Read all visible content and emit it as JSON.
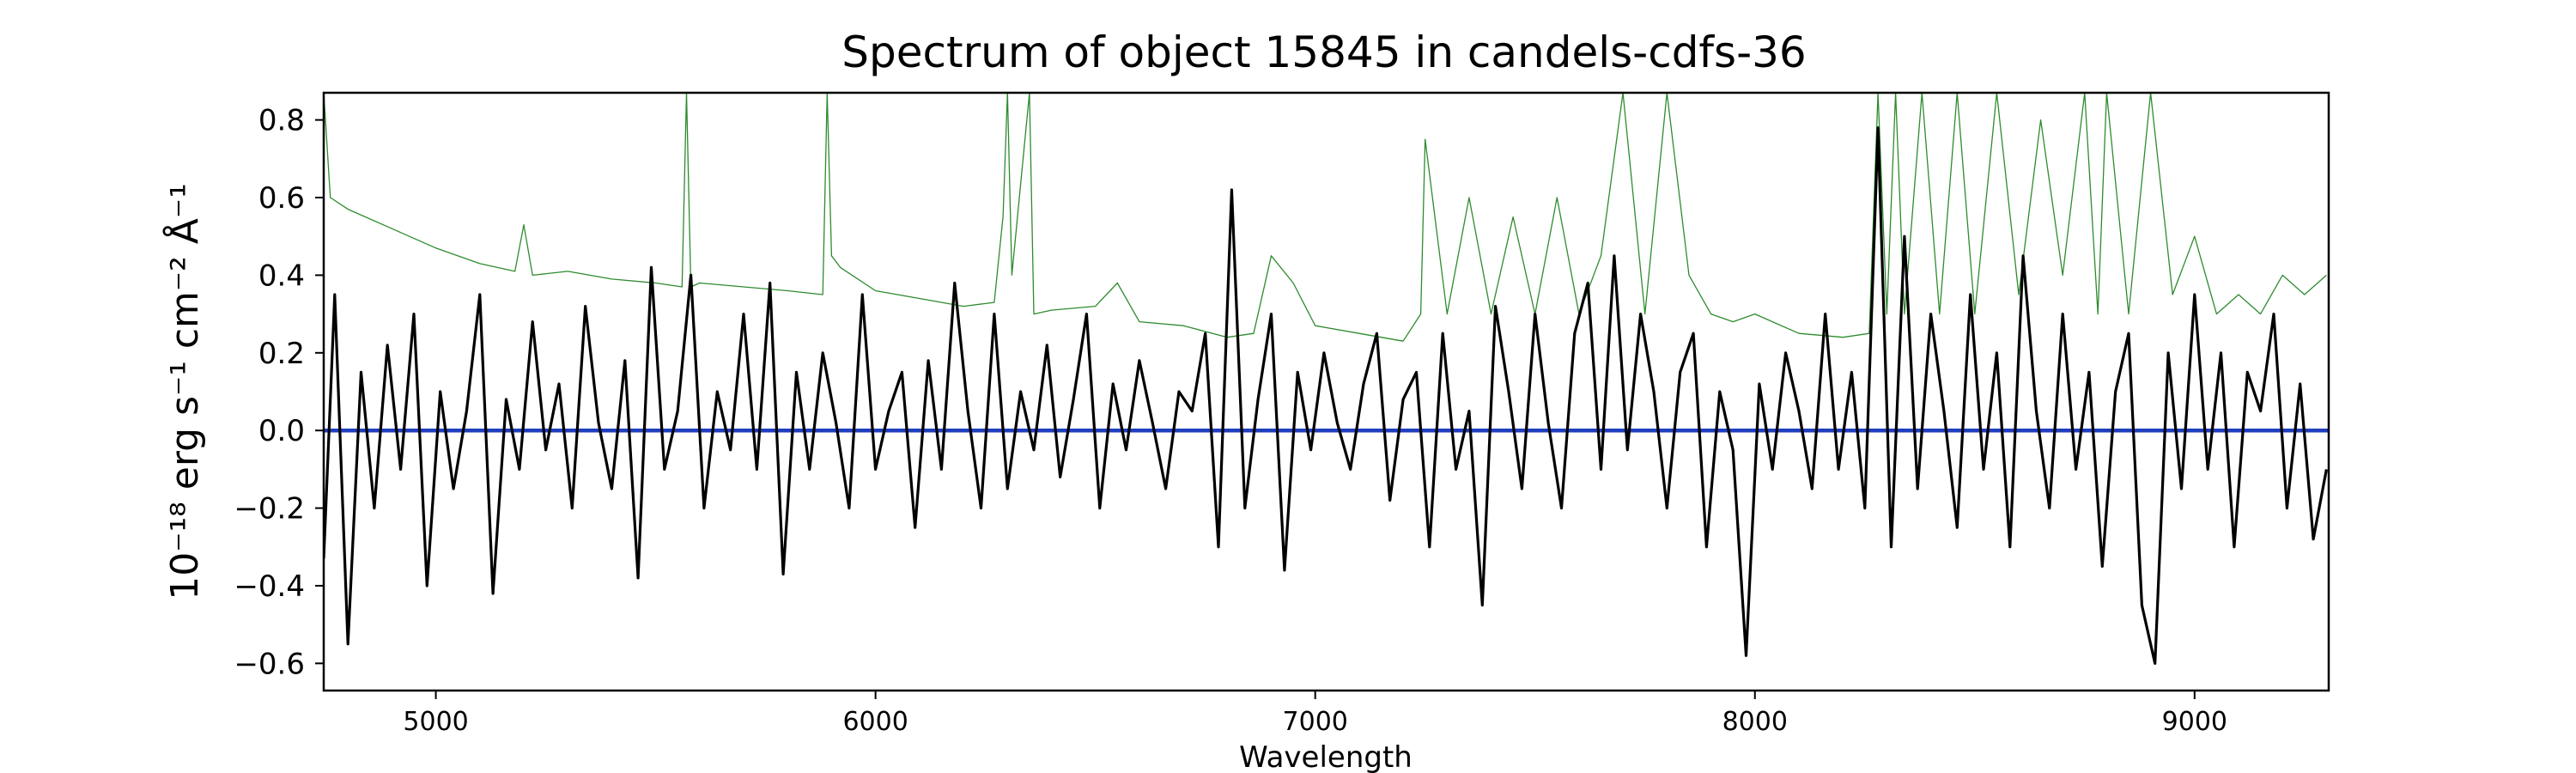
{
  "chart_data": {
    "type": "line",
    "title": "Spectrum of object 15845 in candels-cdfs-36",
    "xlabel": "Wavelength",
    "ylabel": "10⁻¹⁸ erg s⁻¹ cm⁻² Å⁻¹",
    "xlim": [
      4745,
      9305
    ],
    "ylim": [
      -0.67,
      0.87
    ],
    "xticks": [
      5000,
      6000,
      7000,
      8000,
      9000
    ],
    "yticks": [
      -0.6,
      -0.4,
      -0.2,
      0.0,
      0.2,
      0.4,
      0.6,
      0.8
    ],
    "ytick_labels": [
      "−0.6",
      "−0.4",
      "−0.2",
      "0.0",
      "0.2",
      "0.4",
      "0.6",
      "0.8"
    ],
    "grid": false,
    "series": [
      {
        "color": "#000000",
        "x": [
          4745,
          4770,
          4800,
          4830,
          4860,
          4890,
          4920,
          4950,
          4980,
          5010,
          5040,
          5070,
          5100,
          5130,
          5160,
          5190,
          5220,
          5250,
          5280,
          5310,
          5340,
          5370,
          5400,
          5430,
          5460,
          5490,
          5520,
          5550,
          5580,
          5610,
          5640,
          5670,
          5700,
          5730,
          5760,
          5790,
          5820,
          5850,
          5880,
          5910,
          5940,
          5970,
          6000,
          6030,
          6060,
          6090,
          6120,
          6150,
          6180,
          6210,
          6240,
          6270,
          6300,
          6330,
          6360,
          6390,
          6420,
          6450,
          6480,
          6510,
          6540,
          6570,
          6600,
          6630,
          6660,
          6690,
          6720,
          6750,
          6780,
          6810,
          6840,
          6870,
          6900,
          6930,
          6960,
          6990,
          7020,
          7050,
          7080,
          7110,
          7140,
          7170,
          7200,
          7230,
          7260,
          7290,
          7320,
          7350,
          7380,
          7410,
          7440,
          7470,
          7500,
          7530,
          7560,
          7590,
          7620,
          7650,
          7680,
          7710,
          7740,
          7770,
          7800,
          7830,
          7860,
          7890,
          7920,
          7950,
          7980,
          8010,
          8040,
          8070,
          8100,
          8130,
          8160,
          8190,
          8220,
          8250,
          8280,
          8310,
          8340,
          8370,
          8400,
          8430,
          8460,
          8490,
          8520,
          8550,
          8580,
          8610,
          8640,
          8670,
          8700,
          8730,
          8760,
          8790,
          8820,
          8850,
          8880,
          8910,
          8940,
          8970,
          9000,
          9030,
          9060,
          9090,
          9120,
          9150,
          9180,
          9210,
          9240,
          9270,
          9300
        ],
        "values": [
          -0.33,
          0.35,
          -0.55,
          0.15,
          -0.2,
          0.22,
          -0.1,
          0.3,
          -0.4,
          0.1,
          -0.15,
          0.05,
          0.35,
          -0.42,
          0.08,
          -0.1,
          0.28,
          -0.05,
          0.12,
          -0.2,
          0.32,
          0.02,
          -0.15,
          0.18,
          -0.38,
          0.42,
          -0.1,
          0.05,
          0.4,
          -0.2,
          0.1,
          -0.05,
          0.3,
          -0.1,
          0.38,
          -0.37,
          0.15,
          -0.1,
          0.2,
          0.02,
          -0.2,
          0.35,
          -0.1,
          0.05,
          0.15,
          -0.25,
          0.18,
          -0.1,
          0.38,
          0.05,
          -0.2,
          0.3,
          -0.15,
          0.1,
          -0.05,
          0.22,
          -0.12,
          0.08,
          0.3,
          -0.2,
          0.12,
          -0.05,
          0.18,
          0.02,
          -0.15,
          0.1,
          0.05,
          0.25,
          -0.3,
          0.62,
          -0.2,
          0.08,
          0.3,
          -0.36,
          0.15,
          -0.05,
          0.2,
          0.02,
          -0.1,
          0.12,
          0.25,
          -0.18,
          0.08,
          0.15,
          -0.3,
          0.25,
          -0.1,
          0.05,
          -0.45,
          0.32,
          0.1,
          -0.15,
          0.3,
          0.02,
          -0.2,
          0.25,
          0.38,
          -0.1,
          0.45,
          -0.05,
          0.3,
          0.1,
          -0.2,
          0.15,
          0.25,
          -0.3,
          0.1,
          -0.05,
          -0.58,
          0.12,
          -0.1,
          0.2,
          0.05,
          -0.15,
          0.3,
          -0.1,
          0.15,
          -0.2,
          0.78,
          -0.3,
          0.5,
          -0.15,
          0.3,
          0.05,
          -0.25,
          0.35,
          -0.1,
          0.2,
          -0.3,
          0.45,
          0.05,
          -0.2,
          0.3,
          -0.1,
          0.15,
          -0.35,
          0.1,
          0.25,
          -0.45,
          -0.6,
          0.2,
          -0.15,
          0.35,
          -0.1,
          0.2,
          -0.3,
          0.15,
          0.05,
          0.3,
          -0.2,
          0.12,
          -0.28,
          -0.1
        ]
      },
      {
        "color": "#2e8b2e",
        "x": [
          4745,
          4760,
          4800,
          4900,
          5000,
          5100,
          5180,
          5200,
          5220,
          5300,
          5400,
          5500,
          5560,
          5570,
          5580,
          5600,
          5700,
          5800,
          5880,
          5890,
          5900,
          5920,
          6000,
          6100,
          6200,
          6270,
          6290,
          6300,
          6310,
          6350,
          6360,
          6400,
          6500,
          6550,
          6600,
          6700,
          6800,
          6860,
          6900,
          6950,
          7000,
          7100,
          7200,
          7240,
          7250,
          7300,
          7350,
          7400,
          7450,
          7500,
          7550,
          7600,
          7650,
          7700,
          7750,
          7800,
          7850,
          7900,
          7950,
          8000,
          8100,
          8200,
          8260,
          8280,
          8300,
          8320,
          8340,
          8380,
          8420,
          8460,
          8500,
          8550,
          8600,
          8650,
          8700,
          8750,
          8780,
          8800,
          8850,
          8900,
          8950,
          9000,
          9050,
          9100,
          9150,
          9200,
          9250,
          9300
        ],
        "values": [
          0.87,
          0.6,
          0.57,
          0.52,
          0.47,
          0.43,
          0.41,
          0.53,
          0.4,
          0.41,
          0.39,
          0.38,
          0.37,
          0.87,
          0.37,
          0.38,
          0.37,
          0.36,
          0.35,
          0.87,
          0.45,
          0.42,
          0.36,
          0.34,
          0.32,
          0.33,
          0.55,
          0.87,
          0.4,
          0.87,
          0.3,
          0.31,
          0.32,
          0.38,
          0.28,
          0.27,
          0.24,
          0.25,
          0.45,
          0.38,
          0.27,
          0.25,
          0.23,
          0.3,
          0.75,
          0.3,
          0.6,
          0.3,
          0.55,
          0.3,
          0.6,
          0.3,
          0.45,
          0.87,
          0.3,
          0.87,
          0.4,
          0.3,
          0.28,
          0.3,
          0.25,
          0.24,
          0.25,
          0.87,
          0.3,
          0.87,
          0.3,
          0.87,
          0.3,
          0.87,
          0.3,
          0.87,
          0.35,
          0.8,
          0.4,
          0.87,
          0.3,
          0.87,
          0.3,
          0.87,
          0.35,
          0.5,
          0.3,
          0.35,
          0.3,
          0.4,
          0.35,
          0.4
        ]
      },
      {
        "color": "#1f3fbf",
        "x": [
          4745,
          9305
        ],
        "values": [
          0.0,
          0.0
        ]
      }
    ]
  }
}
